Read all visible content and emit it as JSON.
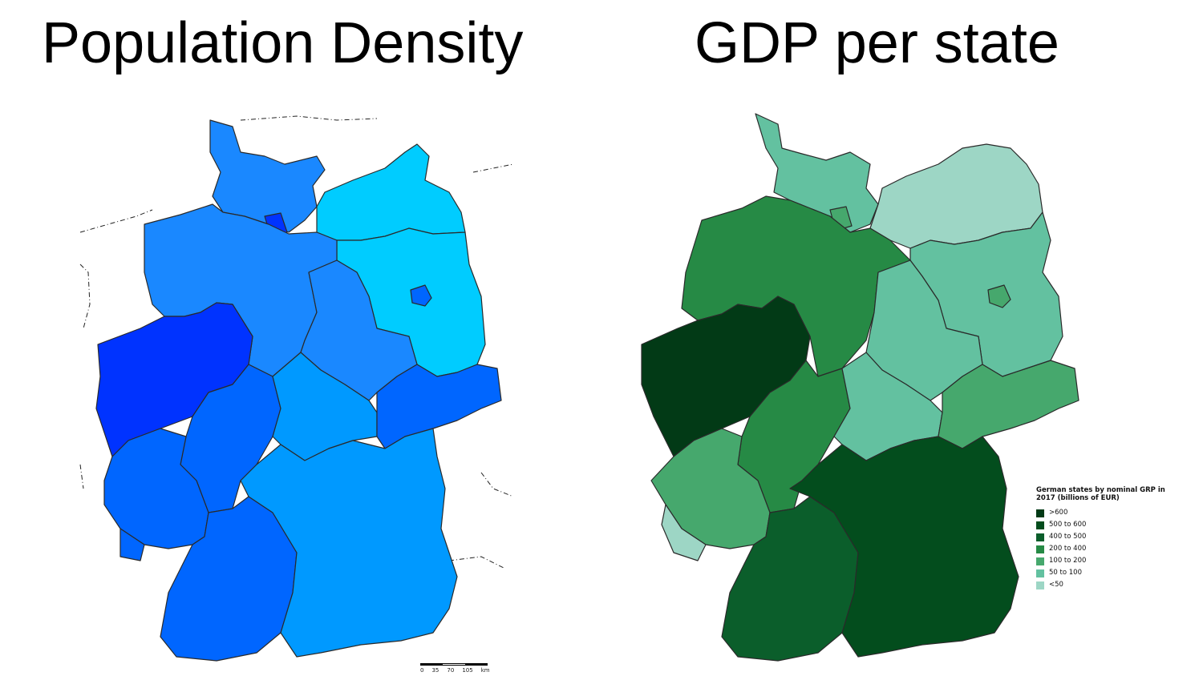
{
  "titles": {
    "left": "Population Density",
    "right": "GDP per state"
  },
  "scalebar": {
    "labels": [
      "0",
      "35",
      "70",
      "105",
      "km"
    ]
  },
  "legend": {
    "title": "German states by nominal GRP in 2017 (billions of EUR)",
    "items": [
      {
        "label": ">600",
        "color": "#023a16"
      },
      {
        "label": "500 to 600",
        "color": "#034d1d"
      },
      {
        "label": "400 to 500",
        "color": "#0b5e2b"
      },
      {
        "label": "200 to 400",
        "color": "#268a45"
      },
      {
        "label": "100 to 200",
        "color": "#46a86d"
      },
      {
        "label": "50 to 100",
        "color": "#63c1a0"
      },
      {
        "label": "<50",
        "color": "#9dd6c5"
      }
    ]
  },
  "colors": {
    "density_light": "#00ccff",
    "density_medium": "#0099ff",
    "density_strong": "#1a88ff",
    "density_high": "#0066ff",
    "density_max": "#0033ff",
    "background": "#ffffff"
  }
}
